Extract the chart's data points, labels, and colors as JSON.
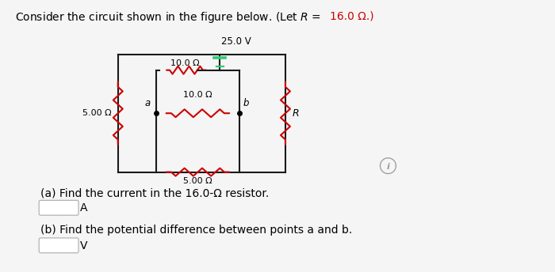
{
  "bg_color": "#f5f5f5",
  "wire_color": "#1a1a1a",
  "resistor_color": "#cc0000",
  "battery_color": "#2ecc71",
  "title_normal": "Consider the circuit shown in the figure below. (Let R = ",
  "title_red": "16.0 Ω.",
  "title_end": ")",
  "voltage_label": "25.0 V",
  "R_top_label": "10.0 Ω",
  "R_mid_label": "10.0 Ω",
  "R_bot_label": "5.00 Ω",
  "R_left_label": "5.00 Ω",
  "R_right_label": "R",
  "point_a": "a",
  "point_b": "b",
  "qa": "(a) Find the current in the 16.0-Ω resistor.",
  "qb": "(b) Find the potential difference between points a and b.",
  "unit_a": "A",
  "unit_b": "V",
  "figsize": [
    7.0,
    3.44
  ],
  "dpi": 100
}
